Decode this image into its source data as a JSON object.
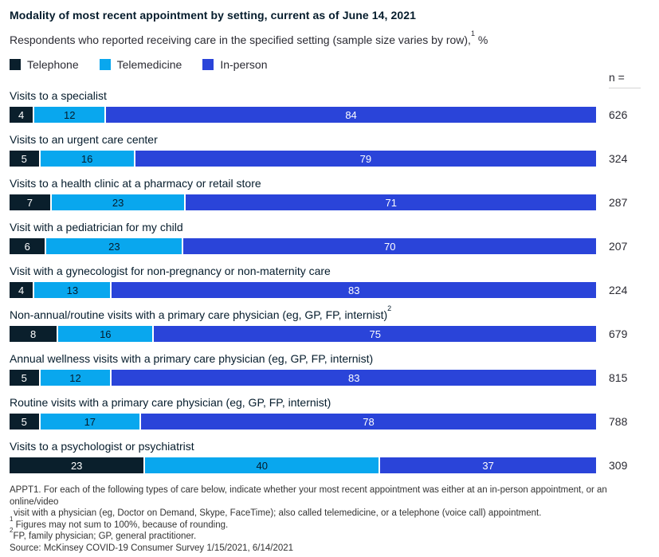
{
  "page": {
    "title": "Modality of most recent appointment by setting, current as of June 14, 2021",
    "subtitle": "Respondents who reported receiving care in the specified setting (sample size varies by row),",
    "subtitle_superscript": "1",
    "subtitle_unit": " %",
    "n_header": "n ="
  },
  "colors": {
    "telephone": "#0A1F2C",
    "telemedicine": "#09A7EE",
    "in_person": "#2A44D9",
    "text_dark": "#051C2C",
    "rule_gray": "#D4D4D4"
  },
  "legend": [
    {
      "label": "Telephone",
      "color": "#0A1F2C",
      "value_text_color": "#FFFFFF"
    },
    {
      "label": "Telemedicine",
      "color": "#09A7EE",
      "value_text_color": "#051C2C"
    },
    {
      "label": "In-person",
      "color": "#2A44D9",
      "value_text_color": "#FFFFFF"
    }
  ],
  "chart_data": {
    "type": "bar",
    "variant": "horizontal-stacked-100pct",
    "unit": "%",
    "xlim": [
      0,
      100
    ],
    "legend_position": "top",
    "series_names": [
      "Telephone",
      "Telemedicine",
      "In-person"
    ],
    "rows": [
      {
        "label": "Visits to a specialist",
        "sup": "",
        "values": [
          4,
          12,
          84
        ],
        "n": "626"
      },
      {
        "label": "Visits to an urgent care center",
        "sup": "",
        "values": [
          5,
          16,
          79
        ],
        "n": "324"
      },
      {
        "label": "Visits to a health clinic at a pharmacy or retail store",
        "sup": "",
        "values": [
          7,
          23,
          71
        ],
        "n": "287"
      },
      {
        "label": "Visit with a pediatrician for my child",
        "sup": "",
        "values": [
          6,
          23,
          70
        ],
        "n": "207"
      },
      {
        "label": "Visit with a gynecologist for non-pregnancy or non-maternity care",
        "sup": "",
        "values": [
          4,
          13,
          83
        ],
        "n": "224"
      },
      {
        "label": "Non-annual/routine visits with a primary care physician (eg, GP, FP, internist)",
        "sup": "2",
        "values": [
          8,
          16,
          75
        ],
        "n": "679"
      },
      {
        "label": "Annual wellness visits with a primary care physician (eg, GP, FP, internist)",
        "sup": "",
        "values": [
          5,
          12,
          83
        ],
        "n": "815"
      },
      {
        "label": "Routine visits with a primary care physician (eg, GP, FP, internist)",
        "sup": "",
        "values": [
          5,
          17,
          78
        ],
        "n": "788"
      },
      {
        "label": "Visits to a psychologist or psychiatrist",
        "sup": "",
        "values": [
          23,
          40,
          37
        ],
        "n": "309"
      }
    ]
  },
  "footnotes": [
    {
      "sup": "",
      "indent": false,
      "text": "APPT1. For each of the following types of care below, indicate whether your most recent appointment was either at an in-person appointment, or an online/video"
    },
    {
      "sup": "",
      "indent": true,
      "text": "visit with a physician (eg, Doctor on Demand, Skype, FaceTime); also called telemedicine, or a telephone (voice call) appointment."
    },
    {
      "sup": "1",
      "indent": false,
      "text": " Figures may not sum to 100%, because of rounding."
    },
    {
      "sup": "2",
      "indent": false,
      "text": "FP, family physician; GP, general practitioner."
    },
    {
      "sup": "",
      "indent": false,
      "text": "Source: McKinsey COVID-19 Consumer Survey 1/15/2021, 6/14/2021"
    }
  ]
}
